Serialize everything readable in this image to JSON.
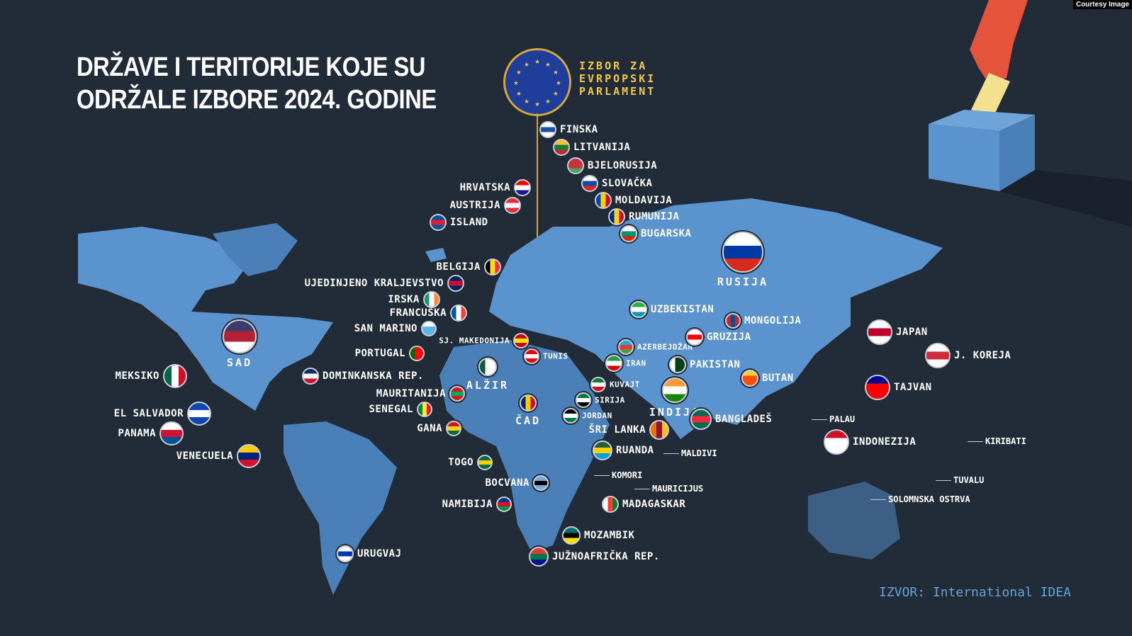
{
  "title_lines": [
    "DRŽAVE I TERITORIJE KOJE SU",
    "ODRŽALE IZBORE 2024. GODINE"
  ],
  "eu": {
    "label_lines": [
      "IZBOR ZA",
      "EVRPOPSKI",
      "PARLAMENT"
    ],
    "colors": [
      "#1f3d9a",
      "#f2c94c"
    ]
  },
  "source": "IZVOR: International IDEA",
  "courtesy": "Courtesy Image",
  "colors": {
    "background": "#222b38",
    "land": "#5b93cf",
    "land_dark": "#4a7fb8",
    "hand": "#e4533a",
    "ballot": "#f5e08f"
  },
  "countries": [
    {
      "name": "FINSKA",
      "flag": [
        "#ffffff",
        "#1c4fa0",
        "#ffffff"
      ]
    },
    {
      "name": "LITVANIJA",
      "flag": [
        "#f4c224",
        "#1a7d3c",
        "#c1272d"
      ]
    },
    {
      "name": "BJELORUSIJA",
      "flag": [
        "#c8313e",
        "#c8313e",
        "#4aa657"
      ]
    },
    {
      "name": "SLOVAČKA",
      "flag": [
        "#ffffff",
        "#0b4ea2",
        "#ee1c25"
      ]
    },
    {
      "name": "MOLDAVIJA",
      "flag": [
        "#0046ae",
        "#ffd200",
        "#cc092f"
      ],
      "v": true
    },
    {
      "name": "RUMUNIJA",
      "flag": [
        "#002b7f",
        "#fcd116",
        "#ce1126"
      ],
      "v": true
    },
    {
      "name": "BUGARSKA",
      "flag": [
        "#ffffff",
        "#00966e",
        "#d62612"
      ]
    },
    {
      "name": "HRVATSKA",
      "flag": [
        "#ff0000",
        "#ffffff",
        "#171796"
      ]
    },
    {
      "name": "AUSTRIJA",
      "flag": [
        "#ed2939",
        "#ffffff",
        "#ed2939"
      ]
    },
    {
      "name": "ISLAND",
      "flag": [
        "#02529c",
        "#dc1e35",
        "#02529c"
      ]
    },
    {
      "name": "BELGIJA",
      "flag": [
        "#000000",
        "#fdda24",
        "#ef3340"
      ],
      "v": true
    },
    {
      "name": "UJEDINJENO KRALJEVSTVO",
      "flag": [
        "#012169",
        "#c8102e",
        "#012169"
      ]
    },
    {
      "name": "IRSKA",
      "flag": [
        "#169b62",
        "#ffffff",
        "#ff883e"
      ],
      "v": true
    },
    {
      "name": "FRANCUSKA",
      "flag": [
        "#0055a4",
        "#ffffff",
        "#ef4135"
      ],
      "v": true
    },
    {
      "name": "SAN MARINO",
      "flag": [
        "#ffffff",
        "#5eb6e4",
        "#5eb6e4"
      ]
    },
    {
      "name": "SJ. MAKEDONIJA",
      "flag": [
        "#d20000",
        "#ffe600",
        "#d20000"
      ]
    },
    {
      "name": "PORTUGAL",
      "flag": [
        "#006600",
        "#ff0000",
        "#ff0000"
      ],
      "v": true
    },
    {
      "name": "TUNIS",
      "flag": [
        "#e70013",
        "#ffffff",
        "#e70013"
      ]
    },
    {
      "name": "ALŽIR",
      "flag": [
        "#006233",
        "#ffffff",
        "#ffffff"
      ],
      "v": true
    },
    {
      "name": "ČAD",
      "flag": [
        "#002664",
        "#fecb00",
        "#c60c30"
      ],
      "v": true
    },
    {
      "name": "MAURITANIJA",
      "flag": [
        "#d01c1f",
        "#00a95c",
        "#d01c1f"
      ]
    },
    {
      "name": "SENEGAL",
      "flag": [
        "#00853f",
        "#fdef42",
        "#e31b23"
      ],
      "v": true
    },
    {
      "name": "GANA",
      "flag": [
        "#ce1126",
        "#fcd116",
        "#006b3f"
      ]
    },
    {
      "name": "TOGO",
      "flag": [
        "#006a4e",
        "#ffce00",
        "#006a4e"
      ]
    },
    {
      "name": "BOCVANA",
      "flag": [
        "#75aadb",
        "#000000",
        "#75aadb"
      ]
    },
    {
      "name": "NAMIBIJA",
      "flag": [
        "#003580",
        "#d21034",
        "#009543"
      ]
    },
    {
      "name": "MOZAMBIK",
      "flag": [
        "#007168",
        "#000000",
        "#fce100"
      ]
    },
    {
      "name": "JUŽNOAFRIČKA REP.",
      "flag": [
        "#e03c31",
        "#007749",
        "#001489"
      ]
    },
    {
      "name": "MADAGASKAR",
      "flag": [
        "#ffffff",
        "#fc3d32",
        "#007e3a"
      ],
      "v": true
    },
    {
      "name": "RUANDA",
      "flag": [
        "#20603d",
        "#fad201",
        "#00a1de"
      ]
    },
    {
      "name": "JORDAN",
      "flag": [
        "#000000",
        "#ffffff",
        "#007a3d"
      ]
    },
    {
      "name": "SIRIJA",
      "flag": [
        "#007a3d",
        "#ffffff",
        "#000000"
      ]
    },
    {
      "name": "KUVAJT",
      "flag": [
        "#007a3d",
        "#ffffff",
        "#ce1126"
      ]
    },
    {
      "name": "IRAN",
      "flag": [
        "#239f40",
        "#ffffff",
        "#da0000"
      ]
    },
    {
      "name": "AZERBEJDŽAN",
      "flag": [
        "#00b5e2",
        "#ef3340",
        "#509e2f"
      ]
    },
    {
      "name": "GRUZIJA",
      "flag": [
        "#ffffff",
        "#ff0000",
        "#ffffff"
      ]
    },
    {
      "name": "UZBEKISTAN",
      "flag": [
        "#1eb53a",
        "#ffffff",
        "#0099b5"
      ]
    },
    {
      "name": "MONGOLIJA",
      "flag": [
        "#c4272f",
        "#015197",
        "#c4272f"
      ],
      "v": true
    },
    {
      "name": "PAKISTAN",
      "flag": [
        "#ffffff",
        "#01411c",
        "#01411c"
      ],
      "v": true
    },
    {
      "name": "INDIJA",
      "flag": [
        "#ff9933",
        "#ffffff",
        "#138808"
      ]
    },
    {
      "name": "ŠRI LANKA",
      "flag": [
        "#eb7400",
        "#8d153a",
        "#ffbe29"
      ],
      "v": true
    },
    {
      "name": "BANGLADEŠ",
      "flag": [
        "#006a4e",
        "#f42a41",
        "#006a4e"
      ]
    },
    {
      "name": "BUTAN",
      "flag": [
        "#ffd520",
        "#ff4e12",
        "#ff4e12"
      ]
    },
    {
      "name": "RUSIJA",
      "flag": [
        "#ffffff",
        "#0039a6",
        "#d52b1e"
      ]
    },
    {
      "name": "JAPAN",
      "flag": [
        "#ffffff",
        "#bc002d",
        "#ffffff"
      ]
    },
    {
      "name": "J. KOREJA",
      "flag": [
        "#ffffff",
        "#cd2e3a",
        "#ffffff"
      ]
    },
    {
      "name": "TAJVAN",
      "flag": [
        "#000095",
        "#fe0000",
        "#fe0000"
      ]
    },
    {
      "name": "INDONEZIJA",
      "flag": [
        "#ce1126",
        "#ffffff",
        "#ffffff"
      ]
    },
    {
      "name": "SAD",
      "flag": [
        "#3c3b6e",
        "#b22234",
        "#ffffff"
      ]
    },
    {
      "name": "MEKSIKO",
      "flag": [
        "#006847",
        "#ffffff",
        "#ce1126"
      ],
      "v": true
    },
    {
      "name": "EL SALVADOR",
      "flag": [
        "#0f47af",
        "#ffffff",
        "#0f47af"
      ]
    },
    {
      "name": "PANAMA",
      "flag": [
        "#ffffff",
        "#d21034",
        "#005293"
      ]
    },
    {
      "name": "VENECUELA",
      "flag": [
        "#ffcc00",
        "#00247d",
        "#cf142b"
      ]
    },
    {
      "name": "DOMINKANSKA REP.",
      "flag": [
        "#002d62",
        "#ffffff",
        "#ce1126"
      ]
    },
    {
      "name": "URUGVAJ",
      "flag": [
        "#ffffff",
        "#0038a8",
        "#ffffff"
      ]
    }
  ],
  "text_only": [
    "KOMORI",
    "MAURICIJUS",
    "MALDIVI",
    "PALAU",
    "KIRIBATI",
    "TUVALU",
    "SOLOMNSKA OSTRVA"
  ]
}
